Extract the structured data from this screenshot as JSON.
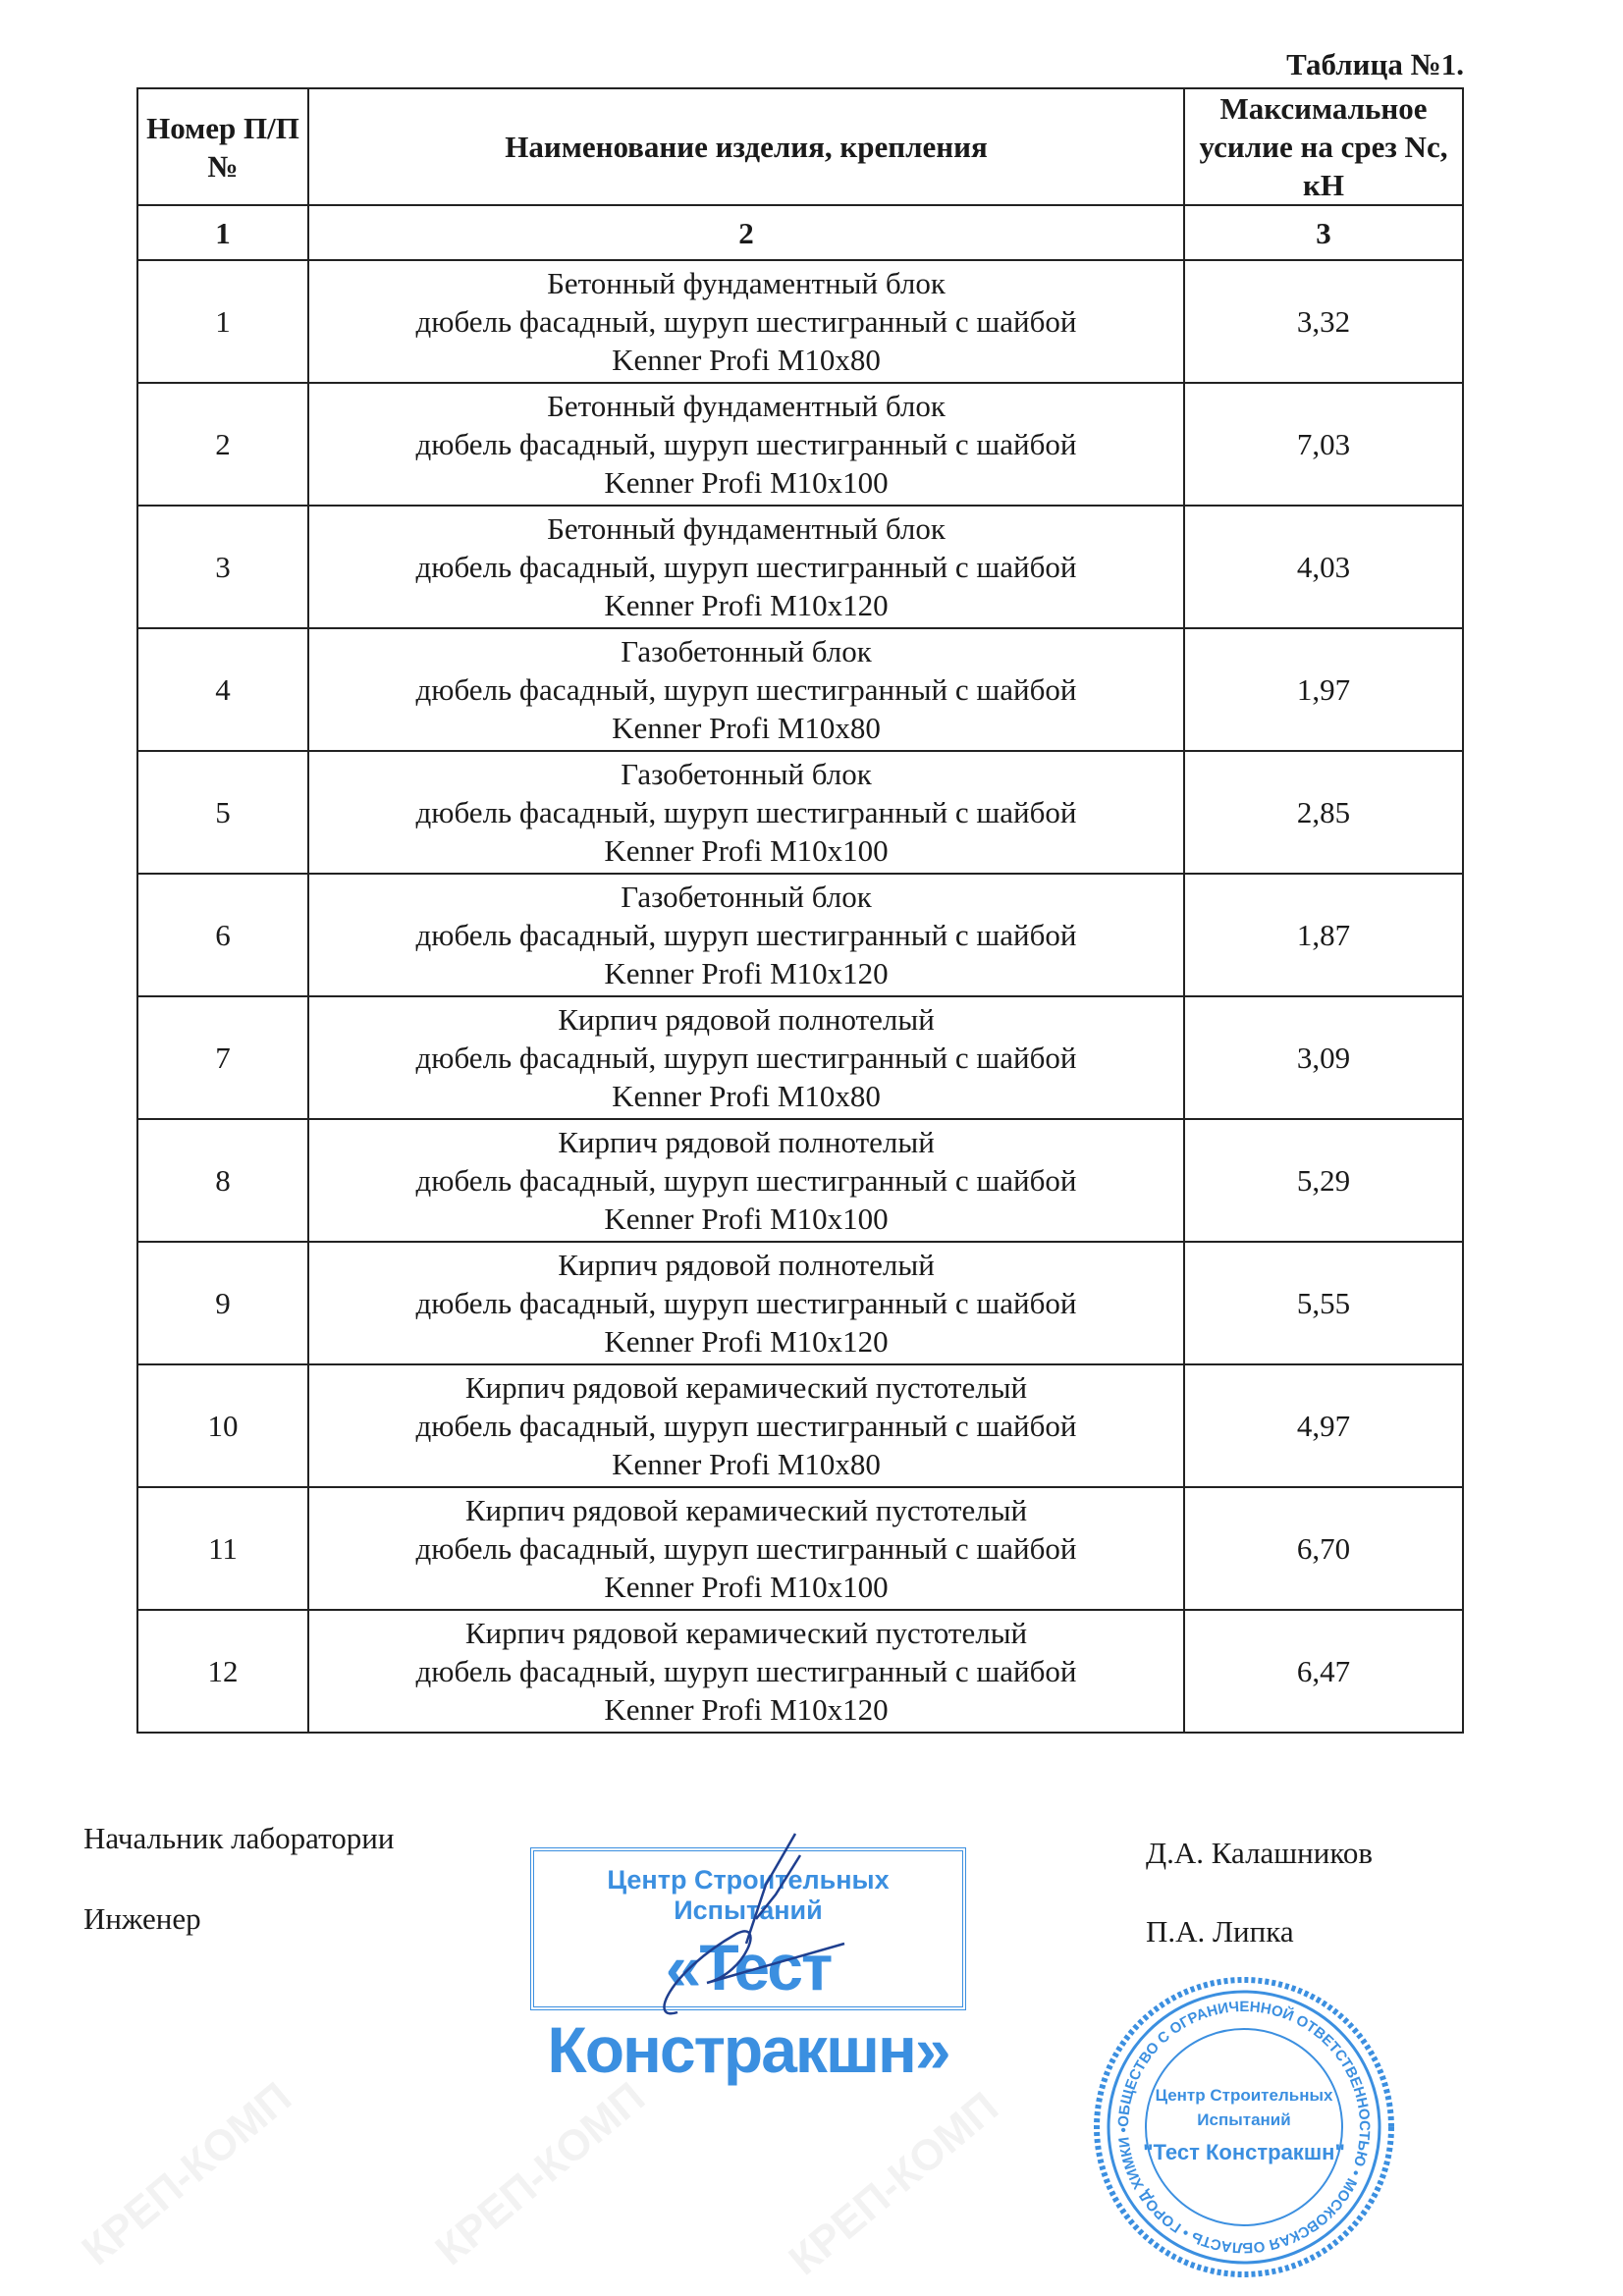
{
  "watermark": "КРЕП-КОМП",
  "table_title": "Таблица №1.",
  "headers": {
    "number": "Номер П/П №",
    "name": "Наименование изделия, крепления",
    "force": "Максимальное усилие на срез Nс, кН"
  },
  "column_numbers": [
    "1",
    "2",
    "3"
  ],
  "rows": [
    {
      "n": "1",
      "material": "Бетонный фундаментный блок",
      "fastener": "дюбель фасадный, шуруп шестигранный с шайбой",
      "model": "Kenner Profi M10x80",
      "force": "3,32"
    },
    {
      "n": "2",
      "material": "Бетонный фундаментный блок",
      "fastener": "дюбель фасадный, шуруп шестигранный с шайбой",
      "model": "Kenner Profi M10x100",
      "force": "7,03"
    },
    {
      "n": "3",
      "material": "Бетонный фундаментный блок",
      "fastener": "дюбель фасадный, шуруп шестигранный с шайбой",
      "model": "Kenner Profi M10x120",
      "force": "4,03"
    },
    {
      "n": "4",
      "material": "Газобетонный блок",
      "fastener": "дюбель фасадный, шуруп шестигранный с шайбой",
      "model": "Kenner Profi M10x80",
      "force": "1,97"
    },
    {
      "n": "5",
      "material": "Газобетонный блок",
      "fastener": "дюбель фасадный, шуруп шестигранный с шайбой",
      "model": "Kenner Profi M10x100",
      "force": "2,85"
    },
    {
      "n": "6",
      "material": "Газобетонный блок",
      "fastener": "дюбель фасадный, шуруп шестигранный с шайбой",
      "model": "Kenner Profi M10x120",
      "force": "1,87"
    },
    {
      "n": "7",
      "material": "Кирпич рядовой полнотелый",
      "fastener": "дюбель фасадный, шуруп шестигранный с шайбой",
      "model": "Kenner Profi M10x80",
      "force": "3,09"
    },
    {
      "n": "8",
      "material": "Кирпич рядовой полнотелый",
      "fastener": "дюбель фасадный, шуруп шестигранный с шайбой",
      "model": "Kenner Profi M10x100",
      "force": "5,29"
    },
    {
      "n": "9",
      "material": "Кирпич рядовой полнотелый",
      "fastener": "дюбель фасадный, шуруп шестигранный с шайбой",
      "model": "Kenner Profi M10x120",
      "force": "5,55"
    },
    {
      "n": "10",
      "material": "Кирпич рядовой керамический пустотелый",
      "fastener": "дюбель фасадный, шуруп шестигранный с шайбой",
      "model": "Kenner Profi M10x80",
      "force": "4,97"
    },
    {
      "n": "11",
      "material": "Кирпич рядовой керамический пустотелый",
      "fastener": "дюбель фасадный, шуруп шестигранный с шайбой",
      "model": "Kenner Profi M10x100",
      "force": "6,70"
    },
    {
      "n": "12",
      "material": "Кирпич рядовой керамический пустотелый",
      "fastener": "дюбель фасадный, шуруп шестигранный с шайбой",
      "model": "Kenner Profi M10x120",
      "force": "6,47"
    }
  ],
  "signatures": {
    "head_title": "Начальник лаборатории",
    "head_name": "Д.А. Калашников",
    "engineer_title": "Инженер",
    "engineer_name": "П.А. Липка"
  },
  "rect_stamp": {
    "line1": "Центр Строительных Испытаний",
    "line2": "«Тест Констракшн»"
  },
  "round_stamp": {
    "ring": "ОБЩЕСТВО С ОГРАНИЧЕННОЙ ОТВЕТСТВЕННОСТЬЮ • МОСКОВСКАЯ ОБЛАСТЬ • ГОРОД ХИМКИ •",
    "center1": "Центр Строительных",
    "center2": "Испытаний",
    "center3": "\"Тест Констракшн\""
  },
  "stamp_color": "#3b8fe0"
}
